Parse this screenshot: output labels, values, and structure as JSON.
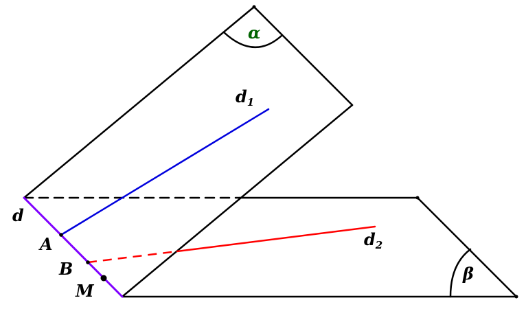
{
  "colors": {
    "outline": "#000000",
    "line_d": "#8000ff",
    "line_d1": "#0000dd",
    "line_d2": "#ff0000",
    "alpha_label": "#006400",
    "beta_label": "#000000"
  },
  "labels": {
    "alpha": "α",
    "beta": "β",
    "d": "d",
    "d1": "d",
    "d1_sub": "1",
    "d2": "d",
    "d2_sub": "2",
    "A": "A",
    "B": "B",
    "M": "M"
  }
}
